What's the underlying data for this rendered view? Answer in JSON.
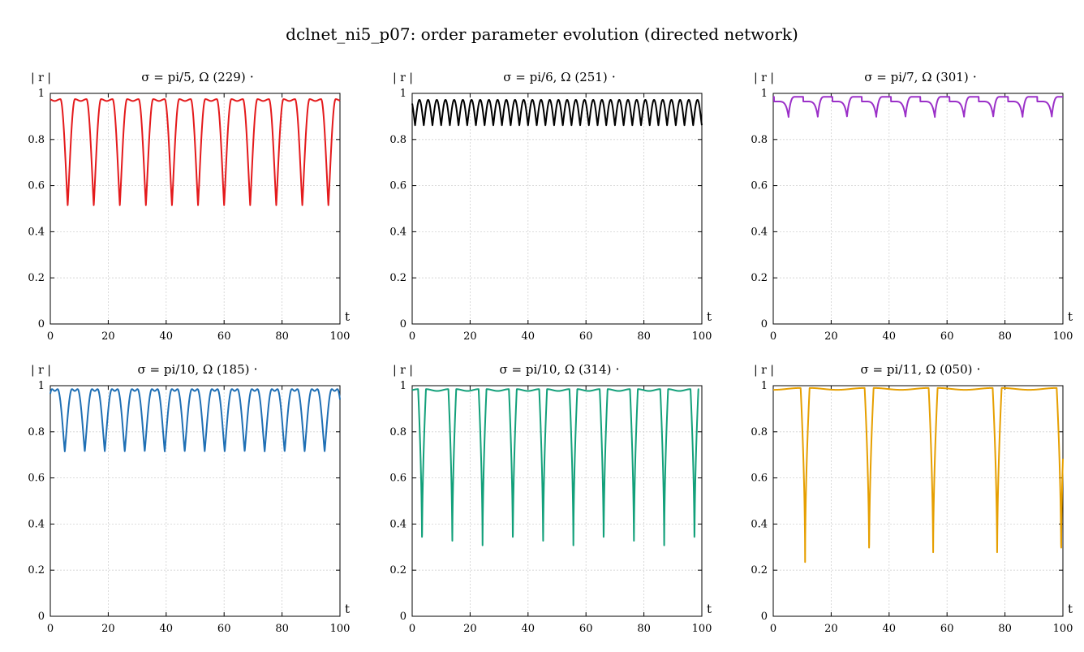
{
  "figure": {
    "title": "dclnet_ni5_p07: order parameter evolution (directed network)"
  },
  "chart_data": [
    {
      "type": "line",
      "title": "σ = pi/5,  Ω (229)",
      "marker_label": "·",
      "xlabel": "t",
      "ylabel": "| r |",
      "xlim": [
        0,
        100
      ],
      "ylim": [
        0,
        1
      ],
      "xticks": [
        0,
        20,
        40,
        60,
        80,
        100
      ],
      "yticks": [
        0,
        0.2,
        0.4,
        0.6,
        0.8,
        1
      ],
      "grid": true,
      "color": "#e41a1c",
      "series": [
        {
          "period": 9.0,
          "phase": 6.0,
          "min": 0.515,
          "max": 0.975,
          "dip_width": 0.28,
          "shape": "cusp",
          "x_start": 0,
          "x_end": 100
        }
      ]
    },
    {
      "type": "line",
      "title": "σ = pi/6,  Ω (251)",
      "marker_label": "·",
      "xlabel": "t",
      "ylabel": "| r |",
      "xlim": [
        0,
        100
      ],
      "ylim": [
        0,
        1
      ],
      "xticks": [
        0,
        20,
        40,
        60,
        80,
        100
      ],
      "yticks": [
        0,
        0.2,
        0.4,
        0.6,
        0.8,
        1
      ],
      "grid": true,
      "color": "#000000",
      "series": [
        {
          "period": 3.0,
          "phase": 1.0,
          "min": 0.862,
          "max": 0.972,
          "dip_width": 0.5,
          "shape": "cusp",
          "x_start": 0,
          "x_end": 100
        }
      ]
    },
    {
      "type": "line",
      "title": "σ = pi/7,  Ω (301)",
      "marker_label": "·",
      "xlabel": "t",
      "ylabel": "| r |",
      "xlim": [
        0,
        100
      ],
      "ylim": [
        0,
        1
      ],
      "xticks": [
        0,
        20,
        40,
        60,
        80,
        100
      ],
      "yticks": [
        0,
        0.2,
        0.4,
        0.6,
        0.8,
        1
      ],
      "grid": true,
      "color": "#9b30c8",
      "series": [
        {
          "period": 10.1,
          "phase": 5.3,
          "min": 0.905,
          "max": 0.985,
          "dip_width": 0.22,
          "shape": "sawtooth",
          "x_start": 0,
          "x_end": 100
        }
      ]
    },
    {
      "type": "line",
      "title": "σ = pi/10,  Ω (185)",
      "marker_label": "·",
      "xlabel": "t",
      "ylabel": "| r |",
      "xlim": [
        0,
        100
      ],
      "ylim": [
        0,
        1
      ],
      "xticks": [
        0,
        20,
        40,
        60,
        80,
        100
      ],
      "yticks": [
        0,
        0.2,
        0.4,
        0.6,
        0.8,
        1
      ],
      "grid": true,
      "color": "#1f6fb4",
      "series": [
        {
          "period": 6.9,
          "phase": 5.0,
          "min": 0.715,
          "max": 0.985,
          "dip_width": 0.36,
          "shape": "cusp",
          "x_start": 0,
          "x_end": 100
        }
      ]
    },
    {
      "type": "line",
      "title": "σ = pi/10,  Ω (314)",
      "marker_label": "·",
      "xlabel": "t",
      "ylabel": "| r |",
      "xlim": [
        0,
        100
      ],
      "ylim": [
        0,
        1
      ],
      "xticks": [
        0,
        20,
        40,
        60,
        80,
        100
      ],
      "yticks": [
        0,
        0.2,
        0.4,
        0.6,
        0.8,
        1
      ],
      "grid": true,
      "color": "#12a07a",
      "series": [
        {
          "period": 10.45,
          "phase": 3.4,
          "min": 0.28,
          "max": 0.985,
          "dip_width": 0.13,
          "shape": "sharp",
          "x_start": 0,
          "x_end": 99
        }
      ]
    },
    {
      "type": "line",
      "title": "σ = pi/11,  Ω (050)",
      "marker_label": "·",
      "xlabel": "t",
      "ylabel": "| r |",
      "xlim": [
        0,
        100
      ],
      "ylim": [
        0,
        1
      ],
      "xticks": [
        0,
        20,
        40,
        60,
        80,
        100
      ],
      "yticks": [
        0,
        0.2,
        0.4,
        0.6,
        0.8,
        1
      ],
      "grid": true,
      "color": "#e69f00",
      "series": [
        {
          "period": 22.1,
          "phase": 11.0,
          "min": 0.235,
          "max": 0.99,
          "dip_width": 0.07,
          "shape": "sharp",
          "x_start": 0,
          "x_end": 100
        }
      ]
    }
  ]
}
